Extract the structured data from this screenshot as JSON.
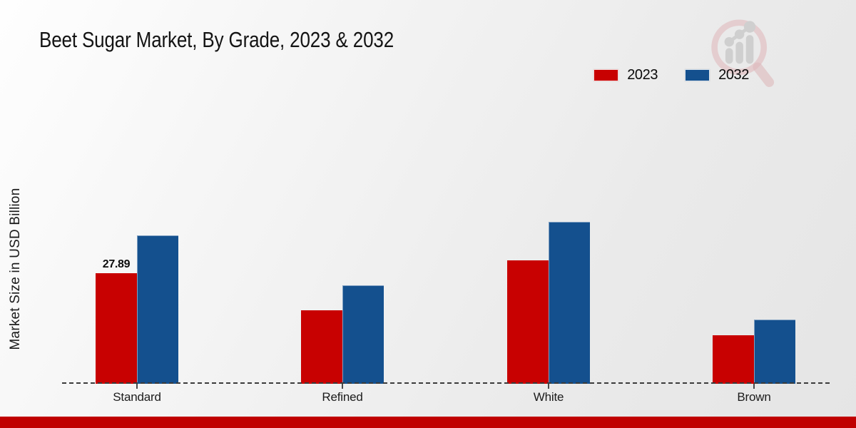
{
  "page": {
    "title": "Beet Sugar Market, By Grade, 2023 & 2032",
    "ylabel": "Market Size in USD Billion"
  },
  "legend": [
    {
      "label": "2023",
      "color": "#c80101"
    },
    {
      "label": "2032",
      "color": "#14508e"
    }
  ],
  "colors": {
    "series_2023": "#c80101",
    "series_2032": "#14508e",
    "footer_strip": "#c00000",
    "axis_dash": "#3b3b3b"
  },
  "chart_data": {
    "type": "bar",
    "title": "Beet Sugar Market, By Grade, 2023 & 2032",
    "xlabel": "",
    "ylabel": "Market Size in USD Billion",
    "categories": [
      "Standard",
      "Refined",
      "White",
      "Brown"
    ],
    "series": [
      {
        "name": "2023",
        "color": "#c80101",
        "values": [
          27.89,
          18.6,
          31.2,
          12.3
        ]
      },
      {
        "name": "2032",
        "color": "#14508e",
        "values": [
          37.4,
          24.9,
          40.9,
          16.2
        ]
      }
    ],
    "data_labels": [
      {
        "series": "2023",
        "category": "Standard",
        "text": "27.89"
      }
    ],
    "ylim": [
      0,
      45
    ],
    "grid": false,
    "y_axis_ticks_visible": false,
    "legend_position": "top-right",
    "baseline_style": "dashed"
  }
}
